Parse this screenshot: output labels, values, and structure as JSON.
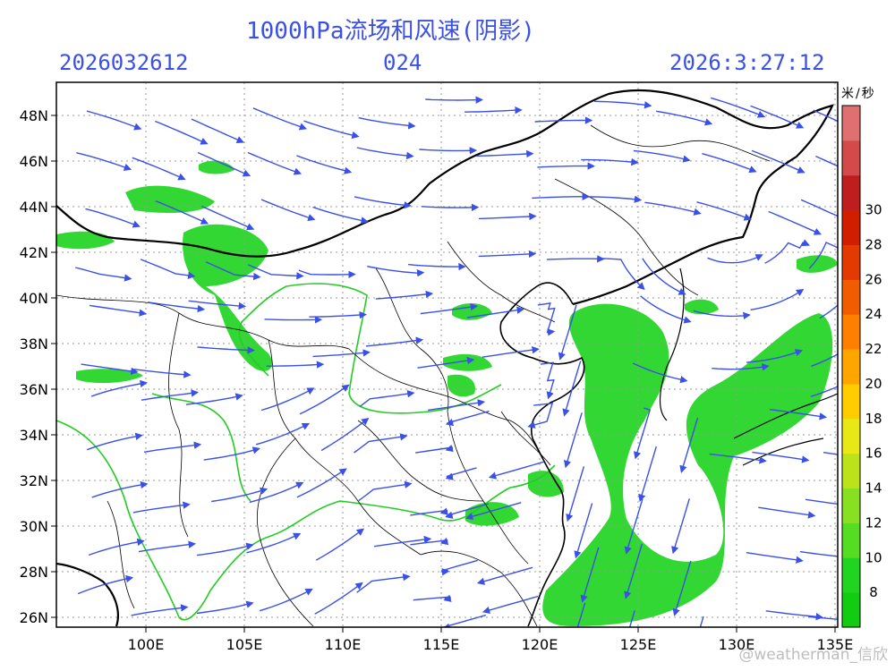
{
  "header": {
    "title": "1000hPa流场和风速(阴影)",
    "run_time": "2026032612",
    "forecast_hour": "024",
    "valid_time": "2026:3:27:12"
  },
  "map": {
    "lat_labels": [
      "48N",
      "46N",
      "44N",
      "42N",
      "40N",
      "38N",
      "36N",
      "34N",
      "32N",
      "30N",
      "28N",
      "26N"
    ],
    "lon_labels": [
      "100E",
      "105E",
      "110E",
      "115E",
      "120E",
      "125E",
      "130E",
      "135E"
    ],
    "shading_color": "#22d422",
    "streamline_color": "#3a50e6",
    "province_border_color": "#000000",
    "basin_border_color": "#22cc22"
  },
  "colorbar": {
    "unit": "米/秒",
    "ticks": [
      "8",
      "10",
      "12",
      "14",
      "16",
      "18",
      "20",
      "22",
      "24",
      "26",
      "28",
      "30"
    ],
    "colors": [
      "#11cc11",
      "#22d422",
      "#55dd22",
      "#88e022",
      "#bbe31a",
      "#e8e817",
      "#ffcc00",
      "#ffa500",
      "#ff7f00",
      "#f25c00",
      "#e23a00",
      "#d11e00",
      "#bf1e1e",
      "#d44a4a",
      "#e07070"
    ]
  },
  "watermark": "@weatherman_信欣"
}
